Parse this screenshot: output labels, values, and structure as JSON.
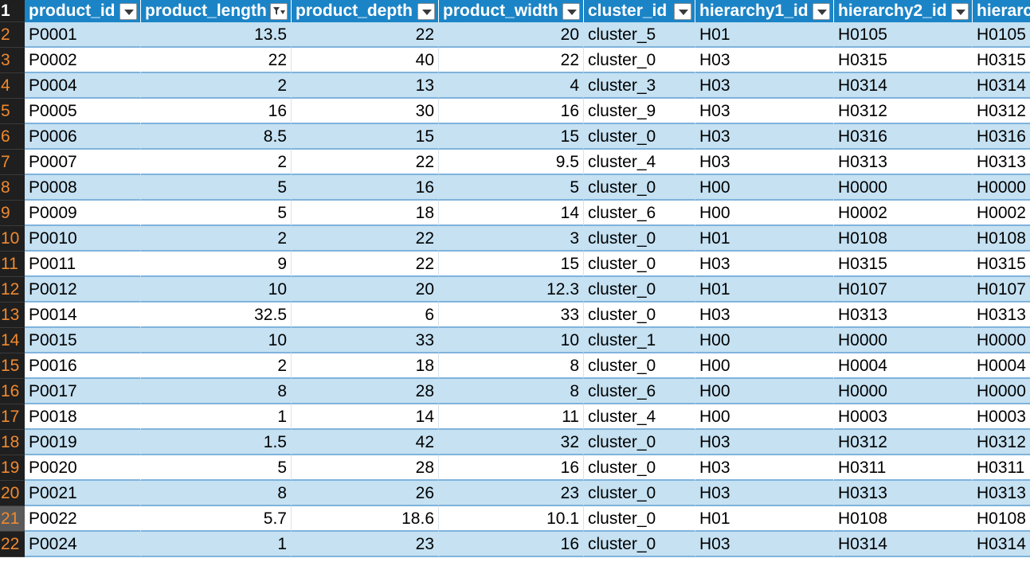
{
  "columns": [
    {
      "label": "product_id",
      "filter_active": false
    },
    {
      "label": "product_length",
      "filter_active": true
    },
    {
      "label": "product_depth",
      "filter_active": false
    },
    {
      "label": "product_width",
      "filter_active": false
    },
    {
      "label": "cluster_id",
      "filter_active": false
    },
    {
      "label": "hierarchy1_id",
      "filter_active": false
    },
    {
      "label": "hierarchy2_id",
      "filter_active": false
    },
    {
      "label": "hierarc",
      "filter_active": false
    }
  ],
  "header_row_number": "1",
  "selected_row_number": "21",
  "rows": [
    {
      "n": "2",
      "cells": [
        "P0001",
        "13.5",
        "22",
        "20",
        "cluster_5",
        "H01",
        "H0105",
        "H0105"
      ]
    },
    {
      "n": "3",
      "cells": [
        "P0002",
        "22",
        "40",
        "22",
        "cluster_0",
        "H03",
        "H0315",
        "H0315"
      ]
    },
    {
      "n": "4",
      "cells": [
        "P0004",
        "2",
        "13",
        "4",
        "cluster_3",
        "H03",
        "H0314",
        "H0314"
      ]
    },
    {
      "n": "5",
      "cells": [
        "P0005",
        "16",
        "30",
        "16",
        "cluster_9",
        "H03",
        "H0312",
        "H0312"
      ]
    },
    {
      "n": "6",
      "cells": [
        "P0006",
        "8.5",
        "15",
        "15",
        "cluster_0",
        "H03",
        "H0316",
        "H0316"
      ]
    },
    {
      "n": "7",
      "cells": [
        "P0007",
        "2",
        "22",
        "9.5",
        "cluster_4",
        "H03",
        "H0313",
        "H0313"
      ]
    },
    {
      "n": "8",
      "cells": [
        "P0008",
        "5",
        "16",
        "5",
        "cluster_0",
        "H00",
        "H0000",
        "H0000"
      ]
    },
    {
      "n": "9",
      "cells": [
        "P0009",
        "5",
        "18",
        "14",
        "cluster_6",
        "H00",
        "H0002",
        "H0002"
      ]
    },
    {
      "n": "10",
      "cells": [
        "P0010",
        "2",
        "22",
        "3",
        "cluster_0",
        "H01",
        "H0108",
        "H0108"
      ]
    },
    {
      "n": "11",
      "cells": [
        "P0011",
        "9",
        "22",
        "15",
        "cluster_0",
        "H03",
        "H0315",
        "H0315"
      ]
    },
    {
      "n": "12",
      "cells": [
        "P0012",
        "10",
        "20",
        "12.3",
        "cluster_0",
        "H01",
        "H0107",
        "H0107"
      ]
    },
    {
      "n": "13",
      "cells": [
        "P0014",
        "32.5",
        "6",
        "33",
        "cluster_0",
        "H03",
        "H0313",
        "H0313"
      ]
    },
    {
      "n": "14",
      "cells": [
        "P0015",
        "10",
        "33",
        "10",
        "cluster_1",
        "H00",
        "H0000",
        "H0000"
      ]
    },
    {
      "n": "15",
      "cells": [
        "P0016",
        "2",
        "18",
        "8",
        "cluster_0",
        "H00",
        "H0004",
        "H0004"
      ]
    },
    {
      "n": "16",
      "cells": [
        "P0017",
        "8",
        "28",
        "8",
        "cluster_6",
        "H00",
        "H0000",
        "H0000"
      ]
    },
    {
      "n": "17",
      "cells": [
        "P0018",
        "1",
        "14",
        "11",
        "cluster_4",
        "H00",
        "H0003",
        "H0003"
      ]
    },
    {
      "n": "18",
      "cells": [
        "P0019",
        "1.5",
        "42",
        "32",
        "cluster_0",
        "H03",
        "H0312",
        "H0312"
      ]
    },
    {
      "n": "19",
      "cells": [
        "P0020",
        "5",
        "28",
        "16",
        "cluster_0",
        "H03",
        "H0311",
        "H0311"
      ]
    },
    {
      "n": "20",
      "cells": [
        "P0021",
        "8",
        "26",
        "23",
        "cluster_0",
        "H03",
        "H0313",
        "H0313"
      ]
    },
    {
      "n": "21",
      "cells": [
        "P0022",
        "5.7",
        "18.6",
        "10.1",
        "cluster_0",
        "H01",
        "H0108",
        "H0108"
      ]
    },
    {
      "n": "22",
      "cells": [
        "P0024",
        "1",
        "23",
        "16",
        "cluster_0",
        "H03",
        "H0314",
        "H0314"
      ]
    }
  ]
}
